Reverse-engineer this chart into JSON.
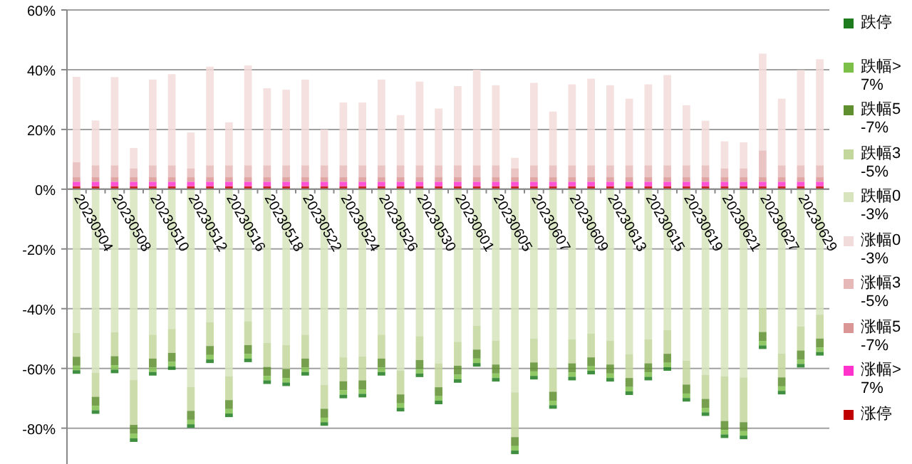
{
  "chart_data": {
    "type": "bar",
    "stacked": true,
    "legend": "right",
    "grid": "y",
    "categories": [
      "20230504",
      null,
      "20230508",
      null,
      "20230510",
      null,
      "20230512",
      null,
      "20230516",
      null,
      "20230518",
      null,
      "20230522",
      null,
      "20230524",
      null,
      "20230526",
      null,
      "20230530",
      null,
      "20230601",
      null,
      "20230605",
      null,
      "20230607",
      null,
      "20230609",
      null,
      "20230613",
      null,
      "20230615",
      null,
      "20230619",
      null,
      "20230621",
      null,
      "20230627",
      null,
      "20230629",
      null
    ],
    "ylim": [
      -92,
      60
    ],
    "yticks": [
      {
        "value": -80,
        "label": "-80%"
      },
      {
        "value": -60,
        "label": "-60%"
      },
      {
        "value": -40,
        "label": "-40%"
      },
      {
        "value": -20,
        "label": "-20%"
      },
      {
        "value": 0,
        "label": "0%"
      },
      {
        "value": 20,
        "label": "20%"
      },
      {
        "value": 40,
        "label": "40%"
      },
      {
        "value": 60,
        "label": "60%"
      }
    ],
    "series": [
      {
        "name": "涨停",
        "color": "#c00000",
        "values": [
          1,
          1,
          1,
          1,
          1,
          1,
          1,
          1,
          1,
          1,
          1,
          1,
          1,
          1,
          1,
          1,
          1,
          1,
          1,
          1,
          1,
          1,
          1,
          1,
          1,
          1,
          1,
          1,
          1,
          1,
          1,
          1,
          1,
          1,
          1,
          1,
          1,
          1,
          1,
          1
        ]
      },
      {
        "name": "涨幅>7%",
        "color": "#ff33cc",
        "values": [
          1.5,
          1.5,
          1.5,
          1.5,
          1.5,
          1.5,
          1.5,
          1.5,
          1.5,
          1.5,
          1.5,
          1.5,
          1.5,
          1.5,
          1.5,
          1.5,
          1.5,
          1.5,
          1.5,
          1.5,
          1.5,
          1.5,
          1.5,
          1.5,
          1.5,
          1.5,
          1.5,
          1.5,
          1.5,
          1.5,
          1.5,
          1.5,
          1.5,
          1.5,
          1.5,
          1.5,
          1.5,
          1.5,
          1.5,
          1.5
        ]
      },
      {
        "name": "涨幅5-7%",
        "color": "#d99694",
        "values": [
          1.5,
          1.5,
          1.5,
          1.5,
          1.5,
          1.5,
          1.5,
          1.5,
          1.5,
          1.5,
          1.5,
          1.5,
          1.5,
          1.5,
          1.5,
          1.5,
          1.5,
          1.5,
          1.5,
          1.5,
          1.5,
          1.5,
          1.5,
          1.5,
          1.5,
          1.5,
          1.5,
          1.5,
          1.5,
          1.5,
          1.5,
          1.5,
          1.5,
          1.5,
          1.5,
          1.5,
          1.5,
          1.5,
          1.5,
          1.5
        ]
      },
      {
        "name": "涨幅3-5%",
        "color": "#e6b9b8",
        "values": [
          5,
          4,
          4,
          3,
          4,
          4,
          3,
          4,
          4,
          4,
          4,
          4,
          4,
          4,
          4,
          4,
          4,
          4,
          4,
          4,
          4,
          4,
          4,
          3,
          4,
          4,
          4,
          4,
          4,
          4,
          4,
          4,
          4,
          4,
          3,
          3,
          9,
          4,
          4,
          4
        ]
      },
      {
        "name": "涨幅0-3%",
        "color": "#f2dcdb",
        "values": [
          28.6,
          15,
          29.5,
          6.8,
          28.7,
          30.5,
          12,
          33,
          14.4,
          33.4,
          25.8,
          25.3,
          28.7,
          12,
          21,
          21,
          28.7,
          16.8,
          28,
          19,
          26.5,
          32,
          26.8,
          3.5,
          27.6,
          18,
          27.1,
          29,
          26.8,
          22.3,
          27.1,
          30.2,
          20.1,
          14.9,
          9,
          8.7,
          32.4,
          22.3,
          31.9,
          35.5
        ]
      },
      {
        "name": "跌幅0-3%",
        "color": "#d7e4bd",
        "values": [
          -48.1,
          -61.5,
          -47.9,
          -63.9,
          -48.7,
          -46.8,
          -66.2,
          -44.5,
          -62.6,
          -44.2,
          -51.5,
          -52.2,
          -48.7,
          -65.5,
          -56.3,
          -56,
          -48.7,
          -60.7,
          -49.2,
          -58.3,
          -51.1,
          -45.7,
          -50.7,
          -68,
          -50,
          -59.8,
          -50.3,
          -48.3,
          -50.7,
          -55.2,
          -50.3,
          -47.1,
          -57.4,
          -62.2,
          -62.6,
          -63,
          -39.8,
          -55,
          -46,
          -42
        ]
      },
      {
        "name": "跌幅3-5%",
        "color": "#c3d69b",
        "values": [
          -8,
          -8,
          -8,
          -15,
          -8,
          -8,
          -8,
          -8,
          -8,
          -8,
          -8,
          -8,
          -8,
          -8,
          -8,
          -8,
          -8,
          -8,
          -8,
          -8,
          -8,
          -8,
          -8,
          -15,
          -8,
          -8,
          -8,
          -8,
          -8,
          -8,
          -8,
          -8,
          -8,
          -8,
          -15,
          -15,
          -8,
          -8,
          -8,
          -8
        ]
      },
      {
        "name": "跌幅5-7%",
        "color": "#5f8f2f",
        "values": [
          -3,
          -3,
          -3,
          -3,
          -3,
          -3,
          -3,
          -3,
          -3,
          -3,
          -3,
          -3,
          -3,
          -3,
          -3,
          -3,
          -3,
          -3,
          -3,
          -3,
          -3,
          -3,
          -3,
          -3,
          -3,
          -3,
          -3,
          -3,
          -3,
          -3,
          -3,
          -3,
          -3,
          -3,
          -3,
          -3,
          -3,
          -3,
          -3,
          -3
        ]
      },
      {
        "name": "跌幅>7%",
        "color": "#7cc04a",
        "values": [
          -1.5,
          -1.5,
          -1.5,
          -1.5,
          -1.5,
          -1.5,
          -1.5,
          -1.5,
          -1.5,
          -1.5,
          -1.5,
          -1.5,
          -1.5,
          -1.5,
          -1.5,
          -1.5,
          -1.5,
          -1.5,
          -1.5,
          -1.5,
          -1.5,
          -1.5,
          -1.5,
          -1.5,
          -1.5,
          -1.5,
          -1.5,
          -1.5,
          -1.5,
          -1.5,
          -1.5,
          -1.5,
          -1.5,
          -1.5,
          -1.5,
          -1.5,
          -1.5,
          -1.5,
          -1.5,
          -1.5
        ]
      },
      {
        "name": "跌停",
        "color": "#1e7b1e",
        "values": [
          -1.2,
          -1.2,
          -1.2,
          -1.2,
          -1.2,
          -1.2,
          -1.2,
          -1.2,
          -1.2,
          -1.2,
          -1.2,
          -1.2,
          -1.2,
          -1.2,
          -1.2,
          -1.2,
          -1.2,
          -1.2,
          -1.2,
          -1.2,
          -1.2,
          -1.2,
          -1.2,
          -1.2,
          -1.2,
          -1.2,
          -1.2,
          -1.2,
          -1.2,
          -1.2,
          -1.2,
          -1.2,
          -1.2,
          -1.2,
          -1.2,
          -1.2,
          -1.2,
          -1.2,
          -1.2,
          -1.2
        ]
      }
    ]
  }
}
